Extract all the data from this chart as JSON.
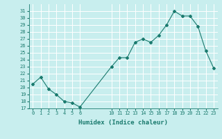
{
  "x": [
    0,
    1,
    2,
    3,
    4,
    5,
    6,
    10,
    11,
    12,
    13,
    14,
    15,
    16,
    17,
    18,
    19,
    20,
    21,
    22,
    23
  ],
  "y": [
    20.5,
    21.5,
    19.8,
    19.0,
    18.0,
    17.8,
    17.2,
    23.0,
    24.3,
    24.3,
    26.5,
    27.0,
    26.5,
    27.5,
    29.0,
    31.0,
    30.3,
    30.3,
    28.8,
    25.3,
    22.8
  ],
  "xlim": [
    -0.5,
    23.5
  ],
  "ylim": [
    17,
    32
  ],
  "yticks": [
    17,
    18,
    19,
    20,
    21,
    22,
    23,
    24,
    25,
    26,
    27,
    28,
    29,
    30,
    31
  ],
  "xticks": [
    0,
    1,
    2,
    3,
    4,
    5,
    6,
    10,
    11,
    12,
    13,
    14,
    15,
    16,
    17,
    18,
    19,
    20,
    21,
    22,
    23
  ],
  "xlabel": "Humidex (Indice chaleur)",
  "line_color": "#1a7a6e",
  "marker": "D",
  "marker_size": 2,
  "bg_color": "#c8eeee",
  "grid_color": "#ffffff",
  "label_color": "#1a7a6e",
  "tick_color": "#1a7a6e",
  "tick_fontsize": 5,
  "xlabel_fontsize": 6.5
}
